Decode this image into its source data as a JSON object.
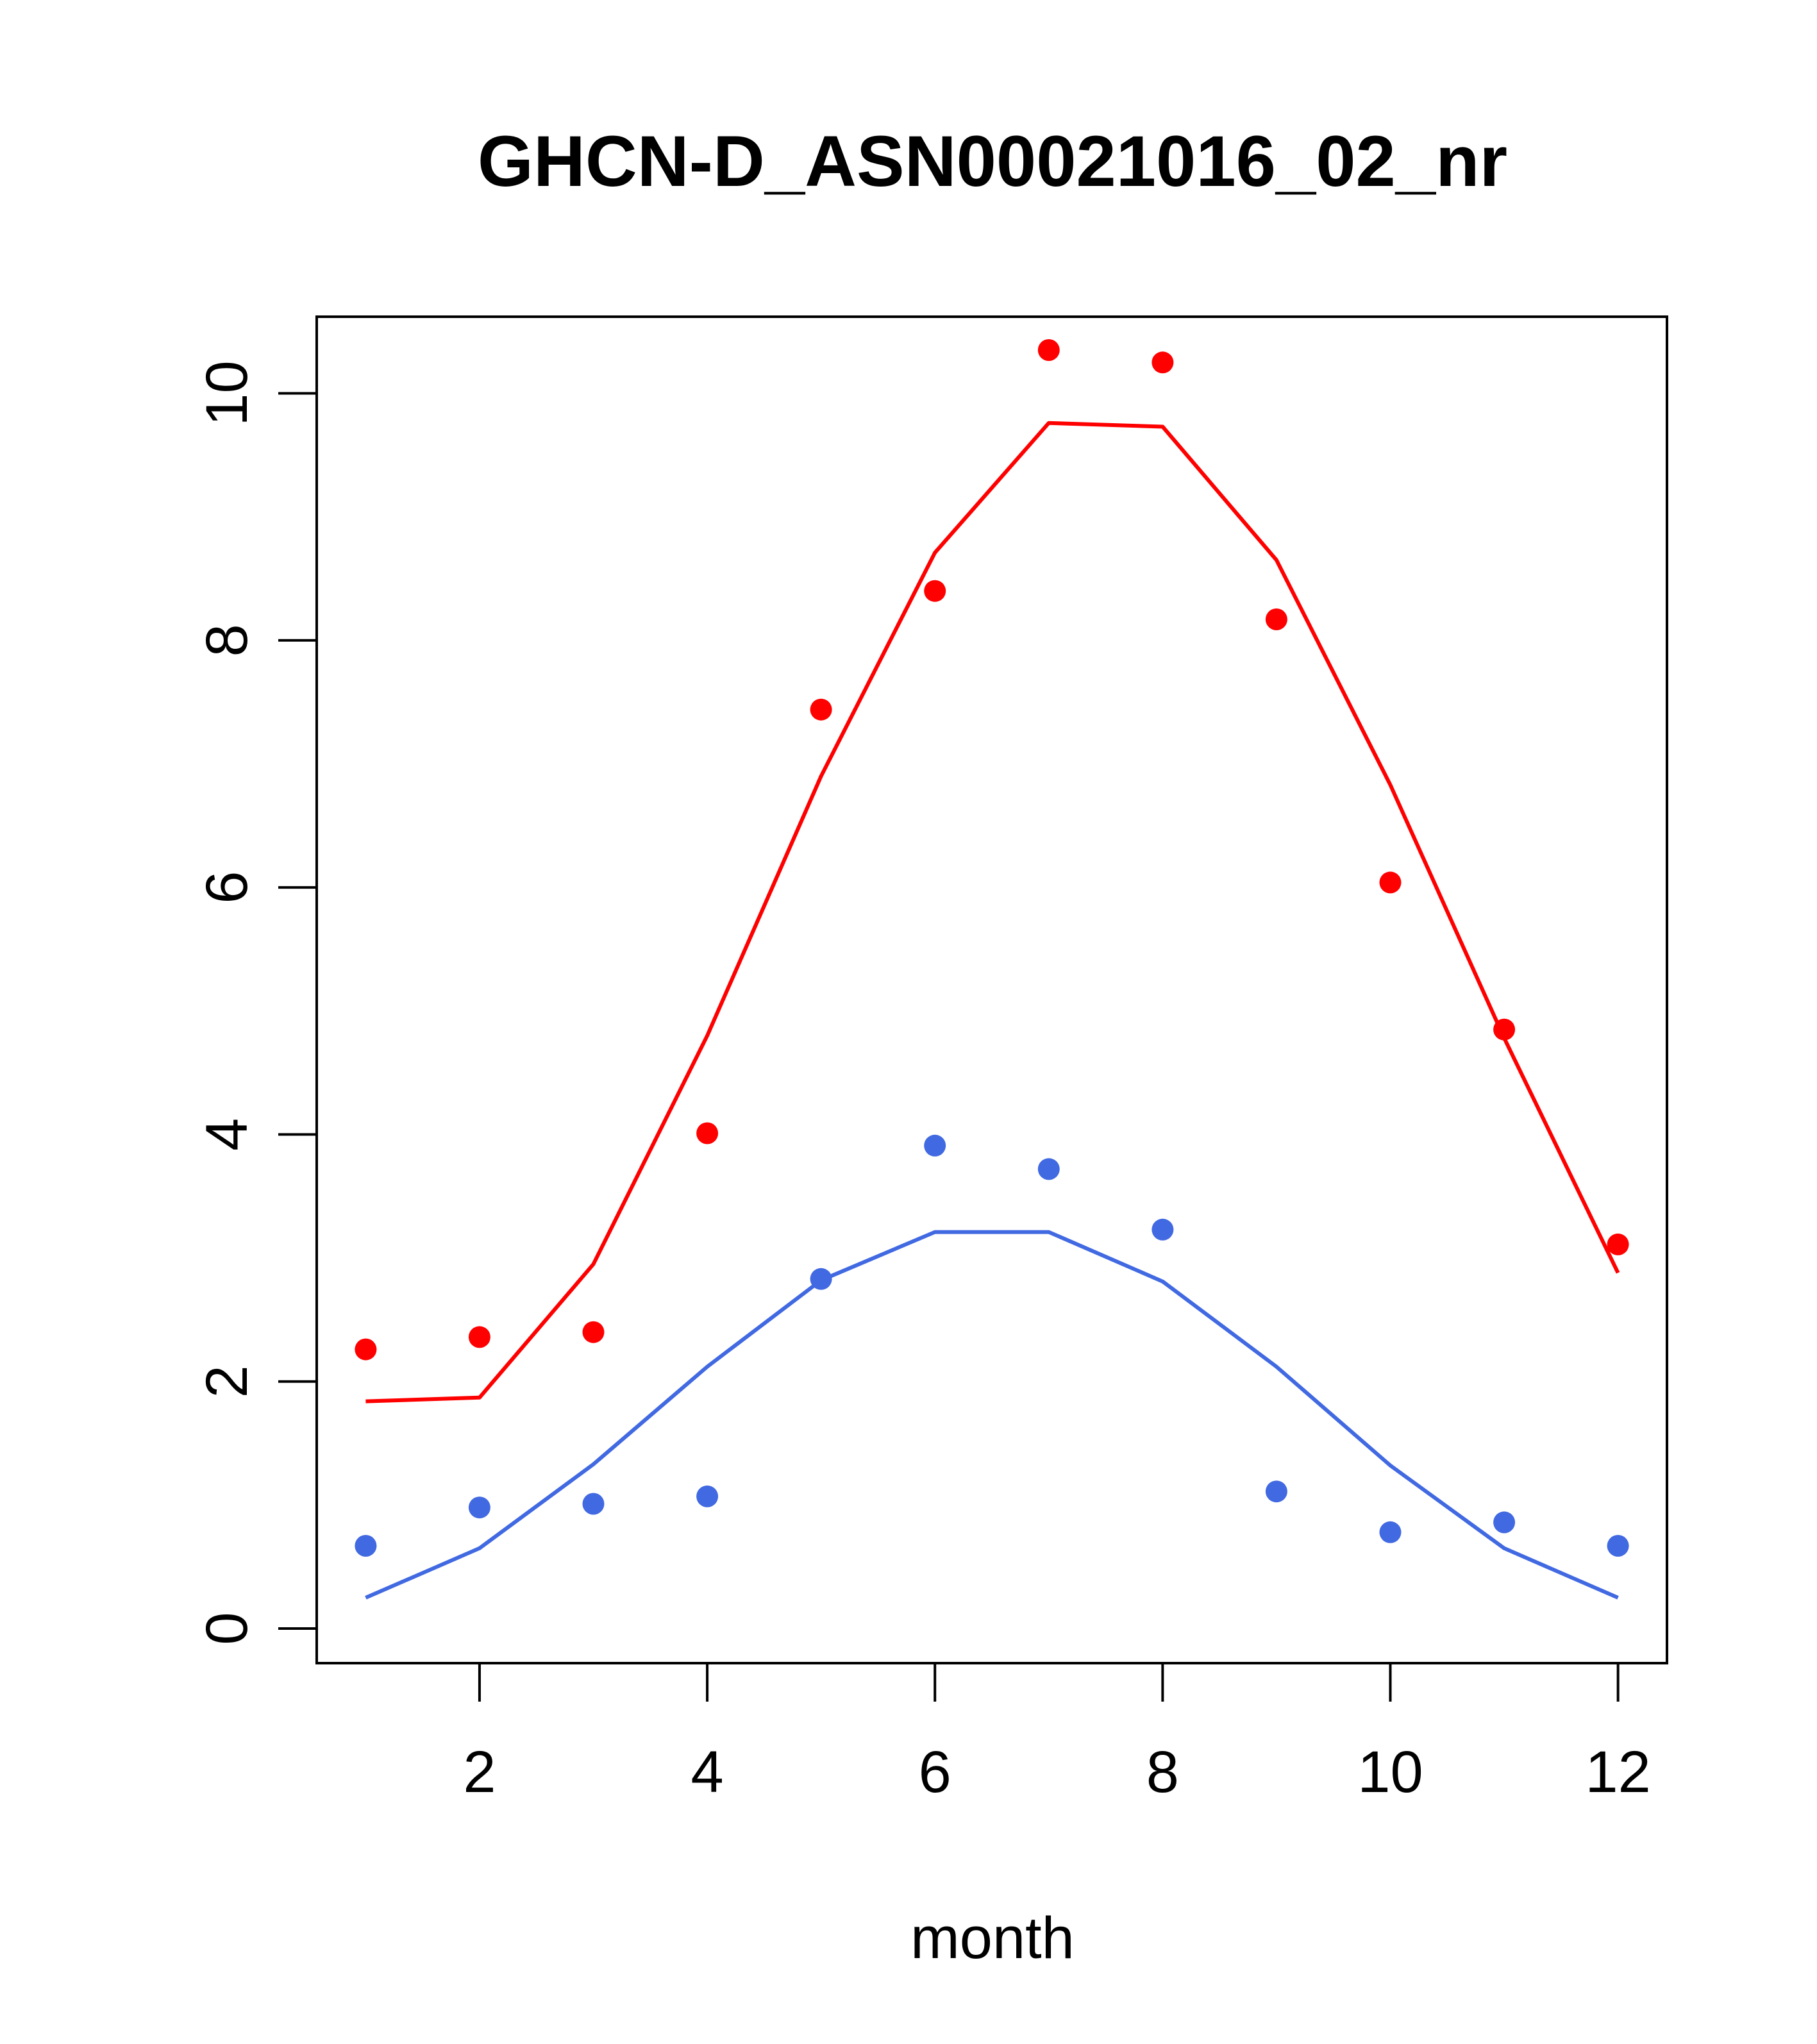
{
  "chart_data": {
    "type": "line",
    "title": "GHCN-D_ASN00021016_02_nr",
    "xlabel": "month",
    "ylabel": "",
    "xlim": [
      0.57,
      12.43
    ],
    "ylim": [
      -0.28,
      10.62
    ],
    "x_ticks": [
      2,
      4,
      6,
      8,
      10,
      12
    ],
    "y_ticks": [
      0,
      2,
      4,
      6,
      8,
      10
    ],
    "x_tick_labels": [
      "2",
      "4",
      "6",
      "8",
      "10",
      "12"
    ],
    "y_tick_labels": [
      "0",
      "2",
      "4",
      "6",
      "8",
      "10"
    ],
    "grid": false,
    "x": [
      1,
      2,
      3,
      4,
      5,
      6,
      7,
      8,
      9,
      10,
      11,
      12
    ],
    "series": [
      {
        "color": "#FF0000",
        "points": [
          2.26,
          2.36,
          2.4,
          4.01,
          7.44,
          8.4,
          10.35,
          10.25,
          8.17,
          6.04,
          4.85,
          3.11
        ],
        "line": [
          1.84,
          1.87,
          2.95,
          4.8,
          6.9,
          8.71,
          9.76,
          9.73,
          8.65,
          6.83,
          4.78,
          2.88
        ]
      },
      {
        "color": "#4169E1",
        "points": [
          0.67,
          0.98,
          1.01,
          1.07,
          2.83,
          3.91,
          3.72,
          3.23,
          1.11,
          0.78,
          0.86,
          0.67
        ],
        "line": [
          0.25,
          0.65,
          1.33,
          2.12,
          2.82,
          3.21,
          3.21,
          2.81,
          2.12,
          1.32,
          0.65,
          0.25
        ]
      }
    ]
  }
}
